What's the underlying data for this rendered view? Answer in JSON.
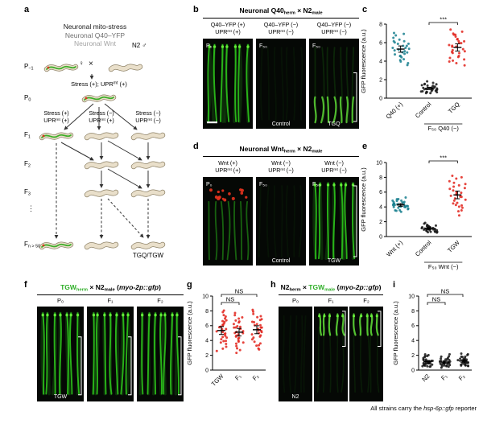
{
  "caption": [
    {
      "t": "All strains carry the "
    },
    {
      "t": "hsp-6p::gfp",
      "i": true
    },
    {
      "t": " reporter"
    }
  ],
  "panels": {
    "a": {
      "letter": "a",
      "titles": [
        {
          "text": "Neuronal mito-stress",
          "color": "#1a1a1a"
        },
        {
          "text": "Neuronal Q40–YFP",
          "color": "#6f6f6f"
        },
        {
          "text": "Neuronal Wnt",
          "color": "#a3a3a3"
        }
      ],
      "n2": [
        {
          "t": "N2 "
        },
        {
          "t": "♂"
        }
      ],
      "herm": "♀",
      "cross": "×",
      "stress_p0": [
        {
          "t": "Stress (+); UPR"
        },
        {
          "t": "mt",
          "s": "sup"
        },
        {
          "t": " (+)"
        }
      ],
      "gen": {
        "pm1": [
          {
            "t": "P"
          },
          {
            "t": "−1",
            "s": "sub"
          }
        ],
        "p0": [
          {
            "t": "P"
          },
          {
            "t": "0",
            "s": "sub"
          }
        ],
        "f1": [
          {
            "t": "F"
          },
          {
            "t": "1",
            "s": "sub"
          }
        ],
        "f2": [
          {
            "t": "F"
          },
          {
            "t": "2",
            "s": "sub"
          }
        ],
        "f3": [
          {
            "t": "F"
          },
          {
            "t": "3",
            "s": "sub"
          }
        ],
        "dots": "⋮",
        "fn": [
          {
            "t": "F"
          },
          {
            "t": "n > 50",
            "s": "sub"
          }
        ]
      },
      "cols": [
        {
          "l1": "Stress (+)",
          "l2": [
            {
              "t": "UPR"
            },
            {
              "t": "mt",
              "s": "sup"
            },
            {
              "t": " (+)"
            }
          ]
        },
        {
          "l1": "Stress (−)",
          "l2": [
            {
              "t": "UPR"
            },
            {
              "t": "mt",
              "s": "sup"
            },
            {
              "t": " (+)"
            }
          ]
        },
        {
          "l1": "Stress (−)",
          "l2": [
            {
              "t": "UPR"
            },
            {
              "t": "mt",
              "s": "sup"
            },
            {
              "t": " (−)"
            }
          ]
        }
      ],
      "tg": "TGQ/TGW"
    },
    "b": {
      "letter": "b",
      "title": [
        {
          "t": "Neuronal Q40"
        },
        {
          "t": "herm",
          "s": "sub"
        },
        {
          "t": " × N2"
        },
        {
          "t": "male",
          "s": "sub"
        }
      ],
      "cols": [
        {
          "l1": "Q40–YFP (+)",
          "l2": [
            {
              "t": "UPR"
            },
            {
              "t": "mt",
              "s": "sup"
            },
            {
              "t": " (+)"
            }
          ]
        },
        {
          "l1": "Q40–YFP (−)",
          "l2": [
            {
              "t": "UPR"
            },
            {
              "t": "mt",
              "s": "sup"
            },
            {
              "t": " (−)"
            }
          ]
        },
        {
          "l1": "Q40–YFP (−)",
          "l2": [
            {
              "t": "UPR"
            },
            {
              "t": "mt",
              "s": "sup"
            },
            {
              "t": " (−)"
            }
          ]
        }
      ],
      "images": [
        {
          "corner": "P₀",
          "bottom": "",
          "pattern": "bright",
          "scalebar": true
        },
        {
          "corner": "F₅₀",
          "bottom": "Control",
          "pattern": "dark"
        },
        {
          "corner": "F₅₀",
          "bottom": "TGQ",
          "pattern": "bottom",
          "bracket": [
            0.38,
            0.92
          ]
        }
      ]
    },
    "c": {
      "letter": "c"
    },
    "d": {
      "letter": "d",
      "title": [
        {
          "t": "Neuronal Wnt"
        },
        {
          "t": "herm",
          "s": "sub"
        },
        {
          "t": " × N2"
        },
        {
          "t": "male",
          "s": "sub"
        }
      ],
      "cols": [
        {
          "l1": "Wnt (+)",
          "l2": [
            {
              "t": "UPR"
            },
            {
              "t": "mt",
              "s": "sup"
            },
            {
              "t": " (+)"
            }
          ]
        },
        {
          "l1": "Wnt (−)",
          "l2": [
            {
              "t": "UPR"
            },
            {
              "t": "mt",
              "s": "sup"
            },
            {
              "t": " (−)"
            }
          ]
        },
        {
          "l1": "Wnt (−)",
          "l2": [
            {
              "t": "UPR"
            },
            {
              "t": "mt",
              "s": "sup"
            },
            {
              "t": " (−)"
            }
          ]
        }
      ],
      "images": [
        {
          "corner": "P₀",
          "bottom": "",
          "pattern": "redtop"
        },
        {
          "corner": "F₅₀",
          "bottom": "Control",
          "pattern": "dark"
        },
        {
          "corner": "F₅₀",
          "bottom": "TGW",
          "pattern": "bright",
          "bracket": [
            0.1,
            0.9
          ]
        }
      ]
    },
    "e": {
      "letter": "e"
    },
    "f": {
      "letter": "f",
      "title": [
        {
          "t": "TGW",
          "c": "#2eae27"
        },
        {
          "t": "herm",
          "s": "sub",
          "c": "#2eae27"
        },
        {
          "t": " × N2"
        },
        {
          "t": "male",
          "s": "sub"
        },
        {
          "t": " ("
        },
        {
          "t": "myo-2p::gfp",
          "i": true
        },
        {
          "t": ")"
        }
      ],
      "cols": [
        "P₀",
        "F₁",
        "F₂"
      ],
      "images": [
        {
          "bottom": "TGW",
          "pattern": "bright",
          "bracket": [
            0.32,
            0.93
          ]
        },
        {
          "bottom": "",
          "pattern": "bright",
          "bracket": [
            0.32,
            0.93
          ]
        },
        {
          "bottom": "",
          "pattern": "bright",
          "bracket": [
            0.32,
            0.93
          ]
        }
      ]
    },
    "g": {
      "letter": "g"
    },
    "h": {
      "letter": "h",
      "title": [
        {
          "t": "N2"
        },
        {
          "t": "herm",
          "s": "sub"
        },
        {
          "t": " × "
        },
        {
          "t": "TGW",
          "c": "#2eae27"
        },
        {
          "t": "male",
          "s": "sub",
          "c": "#2eae27"
        },
        {
          "t": " ("
        },
        {
          "t": "myo-2p::gfp",
          "i": true
        },
        {
          "t": ")"
        }
      ],
      "cols": [
        "P₀",
        "F₁",
        "F₂"
      ],
      "images": [
        {
          "bottom": "N2",
          "pattern": "dark"
        },
        {
          "bottom": "",
          "pattern": "greentop",
          "bracket": [
            0.05,
            0.42
          ]
        },
        {
          "bottom": "",
          "pattern": "greentop",
          "bracket": [
            0.05,
            0.42
          ]
        }
      ]
    },
    "i": {
      "letter": "i"
    }
  },
  "chart_data": {
    "c": {
      "type": "scatter",
      "ylabel": "GFP fluorescence (a.u.)",
      "ylim": [
        0,
        8
      ],
      "yticks": [
        0,
        2,
        4,
        6,
        8
      ],
      "groups": [
        {
          "label": "Q40 (+)",
          "color": "#177f8e",
          "values": [
            4.2,
            5.1,
            5.8,
            6.2,
            4.8,
            5.5,
            6.8,
            3.9,
            5.2,
            4.6,
            6.1,
            5.9,
            4.4,
            5.3,
            6.5,
            4.9,
            5.6,
            3.6,
            6.9,
            5.0,
            4.1,
            5.7,
            6.3,
            4.5,
            5.4,
            7.1,
            3.8,
            6.0,
            5.2,
            4.7
          ]
        },
        {
          "label": "Control",
          "color": "#161616",
          "values": [
            0.8,
            1.2,
            0.6,
            1.5,
            1.0,
            0.9,
            1.3,
            0.7,
            1.1,
            1.6,
            0.5,
            1.4,
            0.8,
            1.0,
            1.2,
            0.6,
            0.9,
            1.7,
            1.1,
            0.7,
            1.3,
            0.8,
            1.5,
            1.0,
            0.9,
            1.2,
            0.6,
            1.8,
            1.1,
            0.9
          ]
        },
        {
          "label": "TGQ",
          "color": "#e2231b",
          "values": [
            5.2,
            6.1,
            4.5,
            6.8,
            3.9,
            5.5,
            7.2,
            4.8,
            5.9,
            6.4,
            3.5,
            5.0,
            6.6,
            4.2,
            5.7,
            7.0,
            4.6,
            5.3,
            6.2,
            3.8,
            5.8,
            6.9,
            4.4,
            5.1,
            6.0,
            7.4,
            4.0,
            5.6,
            6.3,
            4.9
          ]
        }
      ],
      "significance": [
        {
          "from": 1,
          "to": 2,
          "label": "***",
          "level": 0
        }
      ],
      "xlabel": "F₅₀ Q40 (−)",
      "xlabel_span": [
        1,
        2
      ]
    },
    "e": {
      "type": "scatter",
      "ylabel": "GFP fluorescence (a.u.)",
      "ylim": [
        0,
        10
      ],
      "yticks": [
        0,
        2,
        4,
        6,
        8,
        10
      ],
      "groups": [
        {
          "label": "Wnt (+)",
          "color": "#177f8e",
          "values": [
            3.8,
            4.2,
            4.6,
            3.5,
            4.9,
            4.1,
            3.9,
            4.4,
            5.1,
            3.6,
            4.3,
            4.8,
            3.7,
            4.0,
            4.5,
            5.3,
            3.4,
            4.7,
            4.2,
            3.9,
            5.0,
            4.1,
            4.4,
            3.8,
            4.6,
            4.3,
            3.6,
            4.9,
            4.0,
            4.5
          ]
        },
        {
          "label": "Control",
          "color": "#161616",
          "values": [
            0.9,
            1.3,
            0.6,
            1.5,
            1.0,
            0.8,
            1.2,
            0.7,
            1.4,
            1.1,
            0.5,
            1.6,
            0.9,
            1.0,
            1.3,
            0.7,
            1.1,
            1.8,
            0.8,
            1.2,
            0.6,
            1.5,
            1.0,
            0.9,
            1.3,
            0.7,
            1.7,
            1.1,
            0.9,
            1.2
          ]
        },
        {
          "label": "TGW",
          "color": "#e2231b",
          "values": [
            5.5,
            6.8,
            4.2,
            7.5,
            3.6,
            5.9,
            6.4,
            4.8,
            7.1,
            5.2,
            3.9,
            6.0,
            8.2,
            4.5,
            5.7,
            6.6,
            3.4,
            7.8,
            5.0,
            4.3,
            6.2,
            5.4,
            7.3,
            4.0,
            5.8,
            6.9,
            4.6,
            5.3,
            8.0,
            2.8
          ]
        }
      ],
      "significance": [
        {
          "from": 1,
          "to": 2,
          "label": "***",
          "level": 0
        }
      ],
      "xlabel": "F₅₀ Wnt (−)",
      "xlabel_span": [
        1,
        2
      ]
    },
    "g": {
      "type": "scatter",
      "ylabel": "GFP fluorescence (a.u.)",
      "ylim": [
        0,
        10
      ],
      "yticks": [
        0,
        2,
        4,
        6,
        8,
        10
      ],
      "groups": [
        {
          "label": "TGW",
          "color": "#e2231b",
          "values": [
            5.8,
            4.2,
            6.5,
            3.5,
            7.2,
            5.0,
            4.6,
            6.8,
            3.9,
            5.5,
            7.8,
            4.4,
            6.1,
            2.9,
            5.3,
            6.6,
            4.0,
            7.5,
            5.6,
            3.2,
            6.3,
            4.8,
            8.1,
            5.1,
            2.6,
            6.0,
            4.5,
            7.0,
            5.9,
            3.7
          ]
        },
        {
          "label": "F₁",
          "color": "#e2231b",
          "values": [
            5.2,
            4.0,
            6.2,
            3.3,
            6.9,
            4.7,
            5.8,
            3.0,
            6.5,
            4.3,
            7.4,
            5.0,
            2.7,
            5.5,
            6.7,
            3.8,
            5.3,
            7.1,
            4.5,
            2.4,
            6.0,
            5.7,
            3.5,
            6.4,
            4.9,
            7.7,
            5.1,
            3.9,
            5.9,
            4.2
          ]
        },
        {
          "label": "F₂",
          "color": "#e2231b",
          "values": [
            5.6,
            4.4,
            6.6,
            3.6,
            7.3,
            5.2,
            4.8,
            6.9,
            3.4,
            5.7,
            7.9,
            4.6,
            6.2,
            3.0,
            5.4,
            6.8,
            4.1,
            7.6,
            5.8,
            3.3,
            6.4,
            5.0,
            8.2,
            5.3,
            2.8,
            6.1,
            4.7,
            7.1,
            6.0,
            3.8
          ]
        }
      ],
      "significance": [
        {
          "from": 0,
          "to": 1,
          "label": "NS",
          "level": 1
        },
        {
          "from": 0,
          "to": 2,
          "label": "NS",
          "level": 0
        }
      ]
    },
    "i": {
      "type": "scatter",
      "ylabel": "GFP fluorescence (a.u.)",
      "ylim": [
        0,
        10
      ],
      "yticks": [
        0,
        2,
        4,
        6,
        8,
        10
      ],
      "groups": [
        {
          "label": "N2",
          "color": "#161616",
          "values": [
            1.0,
            0.7,
            1.4,
            0.5,
            1.8,
            0.9,
            1.2,
            0.6,
            1.5,
            1.1,
            0.8,
            1.9,
            0.4,
            1.3,
            1.0,
            0.7,
            2.2,
            1.6,
            0.9,
            1.2,
            0.5,
            1.7,
            1.1,
            0.8,
            1.4,
            0.6,
            2.0,
            1.0,
            1.3,
            0.9
          ]
        },
        {
          "label": "F₁",
          "color": "#161616",
          "values": [
            0.9,
            0.6,
            1.3,
            0.5,
            1.6,
            0.8,
            1.1,
            0.7,
            1.4,
            1.0,
            0.9,
            1.8,
            0.4,
            1.2,
            1.1,
            0.6,
            2.1,
            1.5,
            0.8,
            1.1,
            0.5,
            1.6,
            1.0,
            0.9,
            1.3,
            0.7,
            1.9,
            0.9,
            1.2,
            0.8
          ]
        },
        {
          "label": "F₂",
          "color": "#161616",
          "values": [
            1.1,
            0.8,
            1.5,
            0.6,
            1.9,
            1.0,
            1.3,
            0.7,
            1.6,
            1.2,
            0.9,
            2.0,
            0.5,
            1.4,
            1.1,
            0.8,
            2.3,
            1.7,
            1.0,
            1.3,
            0.6,
            1.8,
            1.2,
            0.9,
            1.5,
            0.7,
            2.1,
            1.1,
            1.4,
            1.0
          ]
        }
      ],
      "significance": [
        {
          "from": 0,
          "to": 1,
          "label": "NS",
          "level": 1
        },
        {
          "from": 0,
          "to": 2,
          "label": "NS",
          "level": 0
        }
      ]
    }
  }
}
